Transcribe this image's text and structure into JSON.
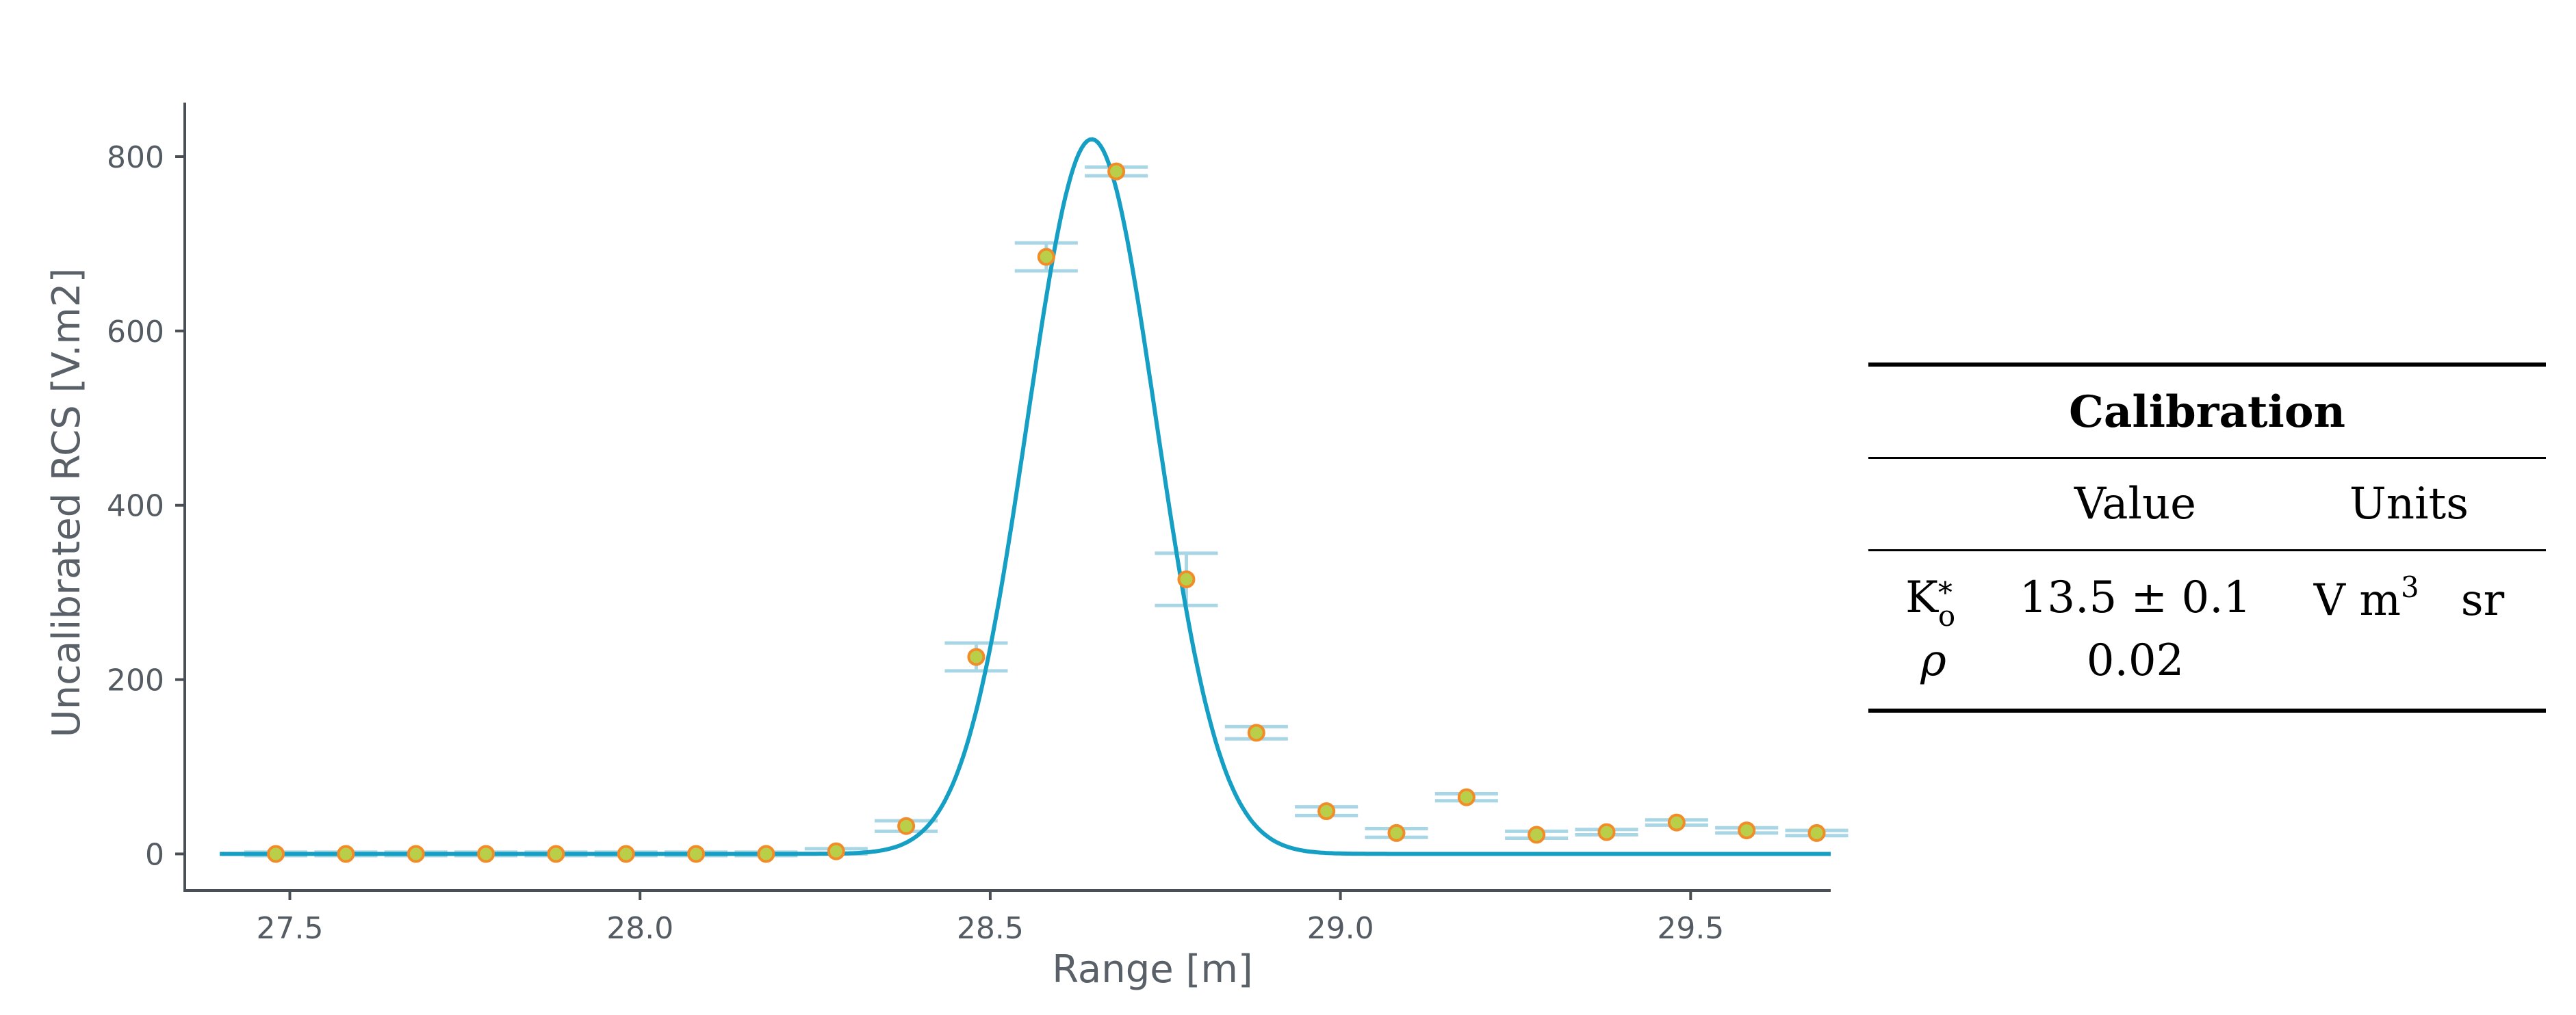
{
  "chart_data": {
    "type": "scatter",
    "xlabel": "Range [m]",
    "ylabel": "Uncalibrated RCS [V.m2]",
    "xlim": [
      27.35,
      29.7
    ],
    "ylim": [
      -42,
      862
    ],
    "x_ticks": [
      {
        "value": 27.5,
        "label": "27.5"
      },
      {
        "value": 28.0,
        "label": "28.0"
      },
      {
        "value": 28.5,
        "label": "28.5"
      },
      {
        "value": 29.0,
        "label": "29.0"
      },
      {
        "value": 29.5,
        "label": "29.5"
      }
    ],
    "y_ticks": [
      {
        "value": 0,
        "label": "0"
      },
      {
        "value": 200,
        "label": "200"
      },
      {
        "value": 400,
        "label": "400"
      },
      {
        "value": 600,
        "label": "600"
      },
      {
        "value": 800,
        "label": "800"
      }
    ],
    "points": [
      {
        "x": 27.48,
        "y": 0,
        "err": 2
      },
      {
        "x": 27.58,
        "y": 0,
        "err": 2
      },
      {
        "x": 27.68,
        "y": 0,
        "err": 2
      },
      {
        "x": 27.78,
        "y": 0,
        "err": 2
      },
      {
        "x": 27.88,
        "y": 0,
        "err": 2
      },
      {
        "x": 27.98,
        "y": 0,
        "err": 2
      },
      {
        "x": 28.08,
        "y": 0,
        "err": 2
      },
      {
        "x": 28.18,
        "y": 0,
        "err": 2
      },
      {
        "x": 28.28,
        "y": 3,
        "err": 3
      },
      {
        "x": 28.38,
        "y": 32,
        "err": 6
      },
      {
        "x": 28.48,
        "y": 226,
        "err": 16
      },
      {
        "x": 28.58,
        "y": 685,
        "err": 16
      },
      {
        "x": 28.68,
        "y": 783,
        "err": 5
      },
      {
        "x": 28.78,
        "y": 315,
        "err": 30
      },
      {
        "x": 28.88,
        "y": 139,
        "err": 7
      },
      {
        "x": 28.98,
        "y": 49,
        "err": 5
      },
      {
        "x": 29.08,
        "y": 24,
        "err": 5
      },
      {
        "x": 29.18,
        "y": 65,
        "err": 4
      },
      {
        "x": 29.28,
        "y": 22,
        "err": 4
      },
      {
        "x": 29.38,
        "y": 25,
        "err": 3
      },
      {
        "x": 29.48,
        "y": 36,
        "err": 3
      },
      {
        "x": 29.58,
        "y": 27,
        "err": 3
      },
      {
        "x": 29.68,
        "y": 24,
        "err": 3
      }
    ],
    "fit": {
      "type": "gaussian",
      "amplitude": 820,
      "center": 28.645,
      "sigma": 0.092
    },
    "colors": {
      "fit": "#159fc4",
      "marker_fill": "#b9cf4a",
      "marker_edge": "#f28c28",
      "error_bar": "#a9d6e5"
    },
    "grid": false
  },
  "table": {
    "title": "Calibration",
    "headers": [
      "",
      "Value",
      "Units"
    ],
    "rows": [
      {
        "symbol": "K",
        "symbol_sup": "*",
        "symbol_sub": "o",
        "value": "13.5 ± 0.1",
        "units": "V m",
        "units_sup": "3",
        "units_suffix": "sr"
      },
      {
        "symbol": "ρ",
        "symbol_sup": "",
        "symbol_sub": "",
        "value": "0.02",
        "units": "",
        "units_sup": "",
        "units_suffix": ""
      }
    ]
  }
}
